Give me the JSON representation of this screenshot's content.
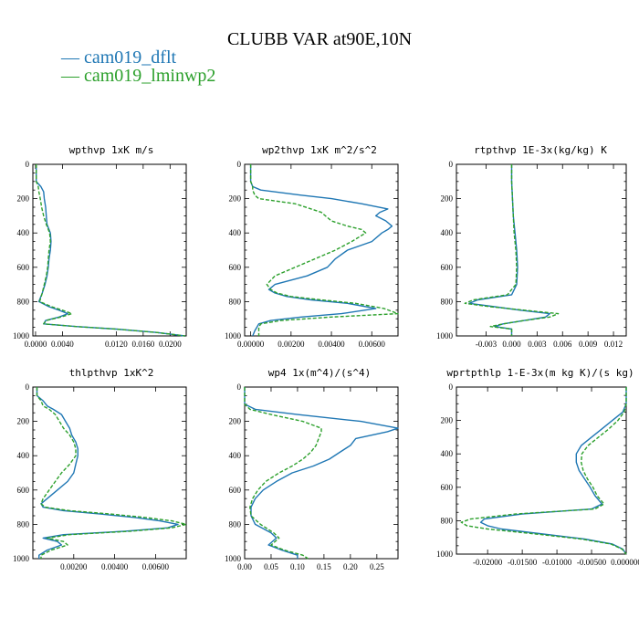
{
  "figure": {
    "title": "CLUBB VAR at90E,10N",
    "legend": [
      {
        "label": "— cam019_dflt",
        "color": "#1f77b4"
      },
      {
        "label": "— cam019_lminwp2",
        "color": "#2ca02c"
      }
    ]
  },
  "chart_data": [
    {
      "type": "line",
      "title": "wpthvp   1xK m/s",
      "xlim": [
        -0.0004,
        0.0224
      ],
      "ylim": [
        1000,
        0
      ],
      "xticks": [
        0.0,
        0.004,
        0.012,
        0.016,
        0.02
      ],
      "xtick_labels": [
        "0.0000",
        "0.0040",
        "0.0120",
        "0.0160",
        "0.0200"
      ],
      "yticks": [
        0,
        200,
        400,
        600,
        800,
        1000
      ],
      "ytick_labels": [
        "0",
        "200",
        "400",
        "600",
        "800",
        "1000"
      ],
      "y": [
        0,
        100,
        130,
        160,
        200,
        250,
        300,
        350,
        400,
        450,
        500,
        550,
        600,
        650,
        700,
        750,
        800,
        830,
        850,
        870,
        890,
        910,
        930,
        945,
        960,
        980,
        1000
      ],
      "series": [
        {
          "name": "cam019_dflt",
          "color": "#1f77b4",
          "dash": false,
          "values": [
            0.0001,
            0.0001,
            0.0008,
            0.0012,
            0.0013,
            0.0015,
            0.0016,
            0.0017,
            0.0022,
            0.0023,
            0.0022,
            0.002,
            0.0019,
            0.0017,
            0.0014,
            0.001,
            0.0005,
            0.002,
            0.0035,
            0.0048,
            0.0035,
            0.0015,
            0.0012,
            0.006,
            0.012,
            0.018,
            0.0222
          ]
        },
        {
          "name": "cam019_lminwp2",
          "color": "#2ca02c",
          "dash": true,
          "values": [
            0.0001,
            0.0001,
            0.0004,
            0.0005,
            0.0007,
            0.0009,
            0.0012,
            0.0016,
            0.0021,
            0.0022,
            0.002,
            0.0019,
            0.0018,
            0.0016,
            0.0013,
            0.001,
            0.0006,
            0.0024,
            0.004,
            0.0054,
            0.0038,
            0.0016,
            0.0012,
            0.006,
            0.012,
            0.018,
            0.0222
          ]
        }
      ]
    },
    {
      "type": "line",
      "title": "wp2thvp   1xK m^2/s^2",
      "xlim": [
        -0.0003,
        0.0073
      ],
      "ylim": [
        1000,
        0
      ],
      "xticks": [
        0.0,
        0.002,
        0.004,
        0.006
      ],
      "xtick_labels": [
        "0.00000",
        "0.00200",
        "0.00400",
        "0.00600"
      ],
      "yticks": [
        0,
        200,
        400,
        600,
        800,
        1000
      ],
      "ytick_labels": [
        "0",
        "200",
        "400",
        "600",
        "800",
        "1000"
      ],
      "y": [
        0,
        100,
        130,
        150,
        180,
        200,
        230,
        260,
        280,
        300,
        330,
        360,
        380,
        400,
        450,
        500,
        550,
        600,
        650,
        700,
        730,
        750,
        770,
        790,
        810,
        840,
        870,
        890,
        910,
        930,
        950,
        970,
        1000
      ],
      "series": [
        {
          "name": "cam019_dflt",
          "color": "#1f77b4",
          "dash": false,
          "values": [
            0.0,
            0.0,
            0.0001,
            0.0005,
            0.0025,
            0.004,
            0.0055,
            0.0068,
            0.0064,
            0.0062,
            0.0067,
            0.007,
            0.0068,
            0.0065,
            0.006,
            0.0048,
            0.0042,
            0.0038,
            0.0028,
            0.0012,
            0.0009,
            0.0012,
            0.0018,
            0.003,
            0.0048,
            0.0062,
            0.0045,
            0.0025,
            0.001,
            0.0004,
            0.0003,
            0.0002,
            0.0001
          ]
        },
        {
          "name": "cam019_lminwp2",
          "color": "#2ca02c",
          "dash": true,
          "values": [
            0.0,
            0.0,
            0.0001,
            0.0001,
            0.0002,
            0.0004,
            0.0022,
            0.003,
            0.0035,
            0.0037,
            0.004,
            0.0048,
            0.0055,
            0.0057,
            0.005,
            0.0042,
            0.0032,
            0.0022,
            0.0012,
            0.0008,
            0.001,
            0.0013,
            0.002,
            0.0035,
            0.0052,
            0.0066,
            0.0073,
            0.004,
            0.0015,
            0.0005,
            0.0004,
            0.0004,
            0.0004
          ]
        }
      ]
    },
    {
      "type": "line",
      "title": "rtpthvp   1E-3x(kg/kg) K",
      "xlim": [
        -0.0065,
        0.0135
      ],
      "ylim": [
        1000,
        0
      ],
      "xticks": [
        -0.003,
        0.0,
        0.003,
        0.006,
        0.009,
        0.012
      ],
      "xtick_labels": [
        "-0.003",
        "0.000",
        "0.003",
        "0.006",
        "0.009",
        "0.012"
      ],
      "yticks": [
        0,
        200,
        400,
        600,
        800,
        1000
      ],
      "ytick_labels": [
        "0",
        "200",
        "400",
        "600",
        "800",
        "1000"
      ],
      "y": [
        0,
        100,
        200,
        300,
        400,
        500,
        600,
        700,
        760,
        790,
        810,
        830,
        850,
        870,
        890,
        910,
        930,
        945,
        960,
        1000
      ],
      "series": [
        {
          "name": "cam019_dflt",
          "color": "#1f77b4",
          "dash": false,
          "values": [
            0.0,
            0.0,
            0.0001,
            0.0002,
            0.0004,
            0.0006,
            0.0007,
            0.0006,
            0.0,
            -0.004,
            -0.005,
            -0.002,
            0.001,
            0.0045,
            0.004,
            0.0015,
            -0.001,
            -0.002,
            0.0,
            0.0
          ]
        },
        {
          "name": "cam019_lminwp2",
          "color": "#2ca02c",
          "dash": true,
          "values": [
            0.0,
            0.0,
            0.0001,
            0.0002,
            0.0003,
            0.0005,
            0.0006,
            0.0005,
            -0.0005,
            -0.0045,
            -0.0055,
            -0.0025,
            0.0015,
            0.0055,
            0.0045,
            0.0015,
            -0.001,
            -0.0025,
            0.0,
            0.0
          ]
        }
      ]
    },
    {
      "type": "line",
      "title": "thlpthvp   1xK^2",
      "xlim": [
        0.0,
        0.0075
      ],
      "ylim": [
        1000,
        0
      ],
      "xticks": [
        0.002,
        0.004,
        0.006
      ],
      "xtick_labels": [
        "0.00200",
        "0.00400",
        "0.00600"
      ],
      "yticks": [
        0,
        200,
        400,
        600,
        800,
        1000
      ],
      "ytick_labels": [
        "0",
        "200",
        "400",
        "600",
        "800",
        "1000"
      ],
      "y": [
        0,
        50,
        80,
        110,
        130,
        160,
        200,
        240,
        280,
        320,
        360,
        400,
        450,
        500,
        550,
        600,
        650,
        680,
        700,
        720,
        740,
        760,
        780,
        800,
        820,
        840,
        860,
        880,
        900,
        920,
        950,
        980,
        1000
      ],
      "series": [
        {
          "name": "cam019_dflt",
          "color": "#1f77b4",
          "dash": false,
          "values": [
            0.0002,
            0.0002,
            0.0005,
            0.0007,
            0.001,
            0.0014,
            0.0016,
            0.0018,
            0.0019,
            0.0021,
            0.0022,
            0.0022,
            0.0021,
            0.002,
            0.0017,
            0.0012,
            0.0007,
            0.0004,
            0.0005,
            0.0015,
            0.0033,
            0.005,
            0.0062,
            0.0071,
            0.0066,
            0.0045,
            0.0015,
            0.0005,
            0.0012,
            0.0014,
            0.0007,
            0.0003,
            0.0003
          ]
        },
        {
          "name": "cam019_lminwp2",
          "color": "#2ca02c",
          "dash": true,
          "values": [
            0.0002,
            0.0002,
            0.0004,
            0.0005,
            0.0008,
            0.0011,
            0.0013,
            0.0015,
            0.0018,
            0.002,
            0.0021,
            0.0021,
            0.0018,
            0.0014,
            0.0011,
            0.0008,
            0.0005,
            0.0004,
            0.0006,
            0.0018,
            0.0038,
            0.0055,
            0.0068,
            0.0075,
            0.0068,
            0.0048,
            0.0018,
            0.0007,
            0.0015,
            0.0017,
            0.0009,
            0.0004,
            0.0004
          ]
        }
      ]
    },
    {
      "type": "line",
      "title": "wp4   1x(m^4)/(s^4)",
      "xlim": [
        0.0,
        0.29
      ],
      "ylim": [
        1000,
        0
      ],
      "xticks": [
        0.0,
        0.05,
        0.1,
        0.15,
        0.2,
        0.25
      ],
      "xtick_labels": [
        "0.00",
        "0.05",
        "0.10",
        "0.15",
        "0.20",
        "0.25"
      ],
      "yticks": [
        0,
        200,
        400,
        600,
        800,
        1000
      ],
      "ytick_labels": [
        "0",
        "200",
        "400",
        "600",
        "800",
        "1000"
      ],
      "y": [
        0,
        100,
        130,
        160,
        200,
        240,
        260,
        300,
        340,
        380,
        420,
        460,
        500,
        550,
        600,
        650,
        700,
        750,
        800,
        850,
        880,
        920,
        950,
        980,
        1000
      ],
      "series": [
        {
          "name": "cam019_dflt",
          "color": "#1f77b4",
          "dash": false,
          "values": [
            0.0,
            0.0,
            0.02,
            0.1,
            0.22,
            0.29,
            0.27,
            0.21,
            0.2,
            0.18,
            0.16,
            0.13,
            0.09,
            0.06,
            0.035,
            0.02,
            0.012,
            0.012,
            0.02,
            0.05,
            0.06,
            0.045,
            0.07,
            0.1,
            0.1
          ]
        },
        {
          "name": "cam019_lminwp2",
          "color": "#2ca02c",
          "dash": true,
          "values": [
            0.0,
            0.0,
            0.01,
            0.05,
            0.11,
            0.145,
            0.145,
            0.14,
            0.135,
            0.125,
            0.11,
            0.09,
            0.065,
            0.04,
            0.025,
            0.015,
            0.01,
            0.012,
            0.03,
            0.055,
            0.065,
            0.05,
            0.075,
            0.11,
            0.12
          ]
        }
      ]
    },
    {
      "type": "line",
      "title": "wprtpthlp   1-E-3x(m kg K)/(s kg)",
      "xlim": [
        -0.0245,
        0.0
      ],
      "ylim": [
        1000,
        0
      ],
      "xticks": [
        -0.02,
        -0.015,
        -0.01,
        -0.005,
        0.0
      ],
      "xtick_labels": [
        "-0.02000",
        "-0.01500",
        "-0.01000",
        "-0.00500",
        "0.000000"
      ],
      "yticks": [
        0,
        200,
        400,
        600,
        800,
        1000
      ],
      "ytick_labels": [
        "0",
        "200",
        "400",
        "600",
        "800",
        "1000"
      ],
      "y": [
        0,
        100,
        150,
        200,
        250,
        300,
        350,
        400,
        450,
        500,
        550,
        600,
        650,
        700,
        730,
        760,
        790,
        810,
        830,
        850,
        880,
        910,
        940,
        970,
        1000
      ],
      "series": [
        {
          "name": "cam019_dflt",
          "color": "#1f77b4",
          "dash": false,
          "values": [
            0.0,
            0.0,
            -0.0005,
            -0.002,
            -0.0035,
            -0.005,
            -0.0065,
            -0.0072,
            -0.0072,
            -0.0068,
            -0.006,
            -0.0052,
            -0.0045,
            -0.0035,
            -0.005,
            -0.015,
            -0.0205,
            -0.021,
            -0.02,
            -0.018,
            -0.012,
            -0.006,
            -0.002,
            -0.0005,
            0.0
          ]
        },
        {
          "name": "cam019_lminwp2",
          "color": "#2ca02c",
          "dash": true,
          "values": [
            0.0,
            0.0,
            -0.0003,
            -0.0012,
            -0.0025,
            -0.004,
            -0.0055,
            -0.0064,
            -0.0065,
            -0.0062,
            -0.0056,
            -0.0048,
            -0.0042,
            -0.0032,
            -0.0045,
            -0.016,
            -0.0225,
            -0.0238,
            -0.023,
            -0.02,
            -0.013,
            -0.0065,
            -0.0022,
            -0.0006,
            0.0
          ]
        }
      ]
    }
  ]
}
